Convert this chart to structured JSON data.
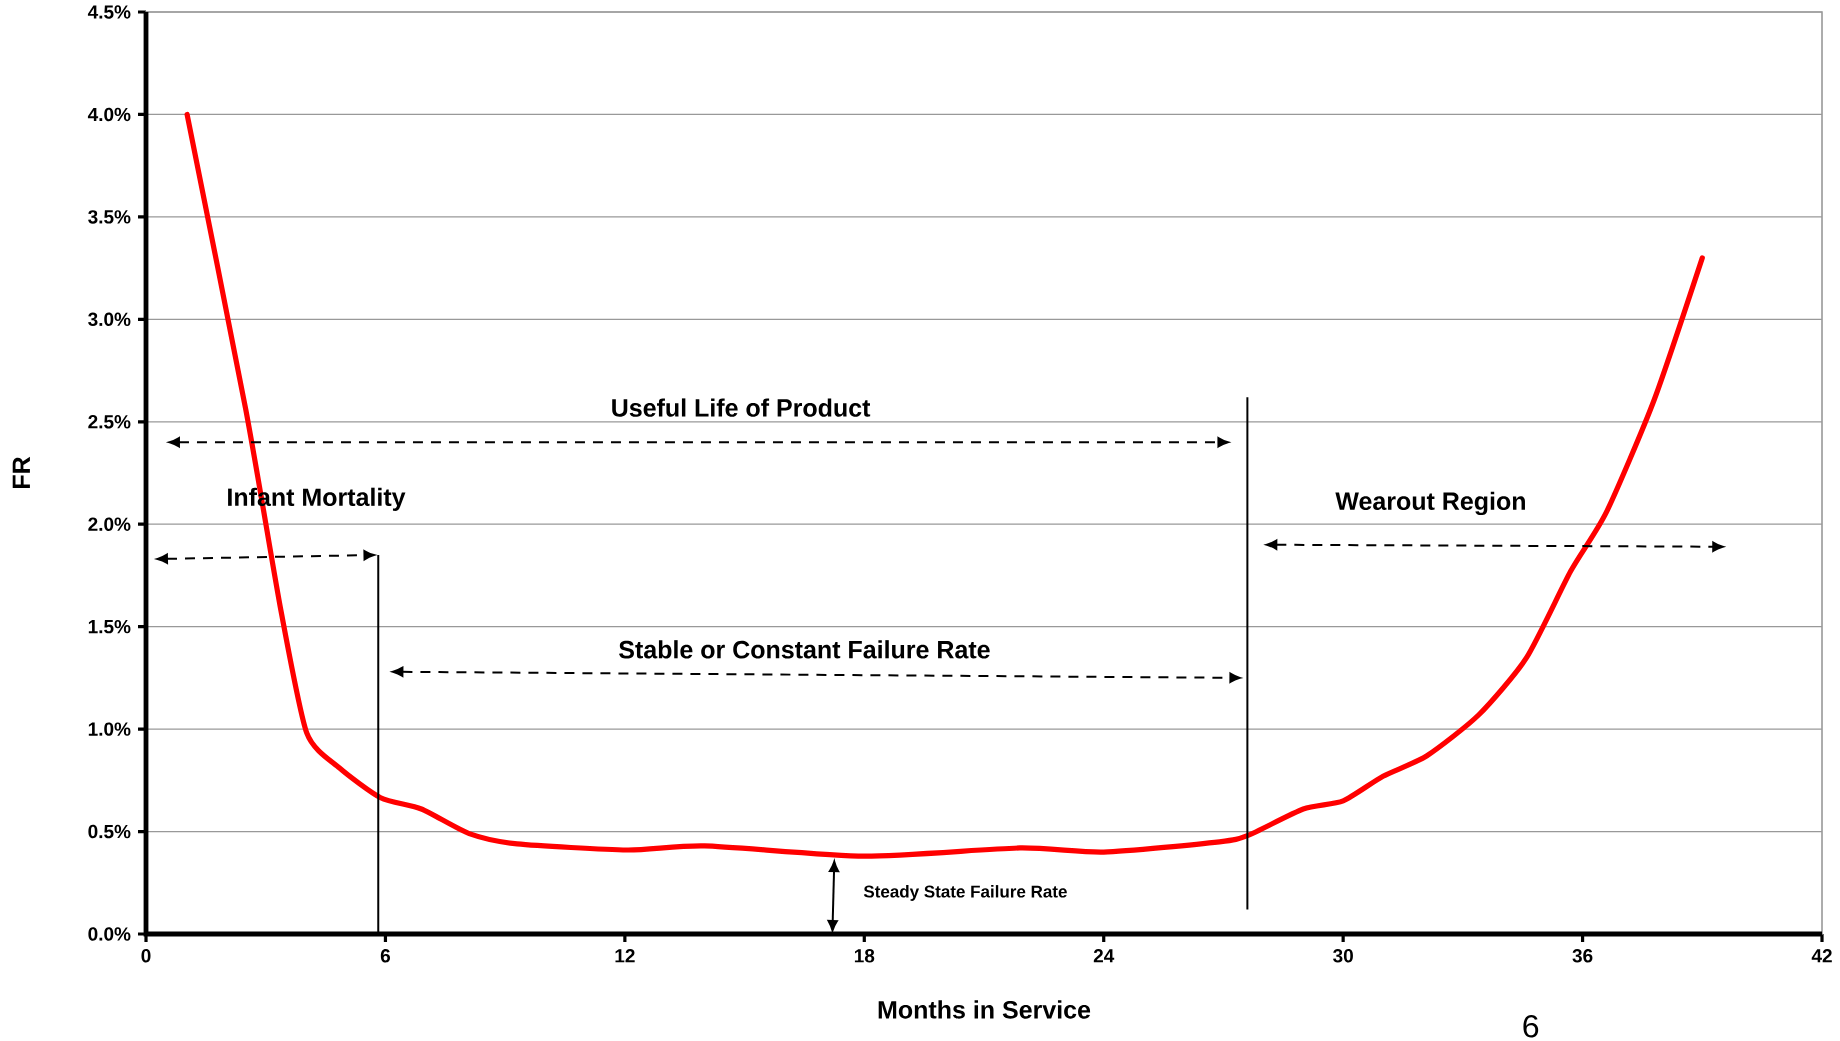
{
  "chart_data": {
    "type": "line",
    "xlabel": "Months in Service",
    "ylabel": "FR",
    "x": [
      1.03,
      2.5,
      3.38,
      4.03,
      4.85,
      5.88,
      6.9,
      8.1,
      9.3,
      12.06,
      14.0,
      18.0,
      21.9,
      24.0,
      26.9,
      27.6,
      29.0,
      30.0,
      31.0,
      32.1,
      33.4,
      34.6,
      35.7,
      36.6,
      37.8,
      39.0
    ],
    "series": [
      {
        "color": "#ff0000",
        "values": [
          4.0,
          2.56,
          1.58,
          0.98,
          0.81,
          0.665,
          0.61,
          0.49,
          0.44,
          0.41,
          0.43,
          0.38,
          0.42,
          0.4,
          0.45,
          0.48,
          0.61,
          0.65,
          0.77,
          0.87,
          1.07,
          1.35,
          1.77,
          2.06,
          2.61,
          3.3
        ]
      }
    ],
    "xlim": [
      0,
      42
    ],
    "xticks": [
      0,
      6,
      12,
      18,
      24,
      30,
      36,
      42
    ],
    "ylim": [
      0,
      4.5
    ],
    "yticks": [
      {
        "value": 0,
        "label": "0.0%"
      },
      {
        "value": 0.5,
        "label": "0.5%"
      },
      {
        "value": 1,
        "label": "1.0%"
      },
      {
        "value": 1.5,
        "label": "1.5%"
      },
      {
        "value": 2,
        "label": "2.0%"
      },
      {
        "value": 2.5,
        "label": "2.5%"
      },
      {
        "value": 3,
        "label": "3.0%"
      },
      {
        "value": 3.5,
        "label": "3.5%"
      },
      {
        "value": 4,
        "label": "4.0%"
      },
      {
        "value": 4.5,
        "label": "4.5%"
      }
    ],
    "grid": "y",
    "marker": "none",
    "line_style": "solid",
    "ref_lines": [
      {
        "axis": "x",
        "value": 5.82
      },
      {
        "axis": "x",
        "value": 27.6
      }
    ],
    "annotations": [
      "Useful Life of Product",
      "Infant Mortality",
      "Stable or Constant  Failure Rate",
      "Wearout Region",
      "Steady State Failure Rate",
      "6"
    ]
  }
}
